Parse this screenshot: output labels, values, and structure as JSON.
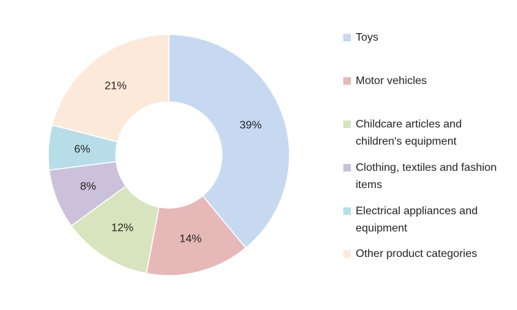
{
  "chart_data": {
    "type": "donut",
    "categories": [
      "Toys",
      "Motor vehicles",
      "Childcare articles and children's equipment",
      "Clothing, textiles and fashion items",
      "Electrical appliances and equipment",
      "Other product categories"
    ],
    "values": [
      39,
      14,
      12,
      8,
      6,
      21
    ],
    "value_labels": [
      "39%",
      "14%",
      "12%",
      "8%",
      "6%",
      "21%"
    ],
    "colors": [
      "#c6d9f1",
      "#e6b9b8",
      "#d7e4bd",
      "#ccc1da",
      "#b7dee8",
      "#fde9d9"
    ],
    "legend": "right"
  }
}
